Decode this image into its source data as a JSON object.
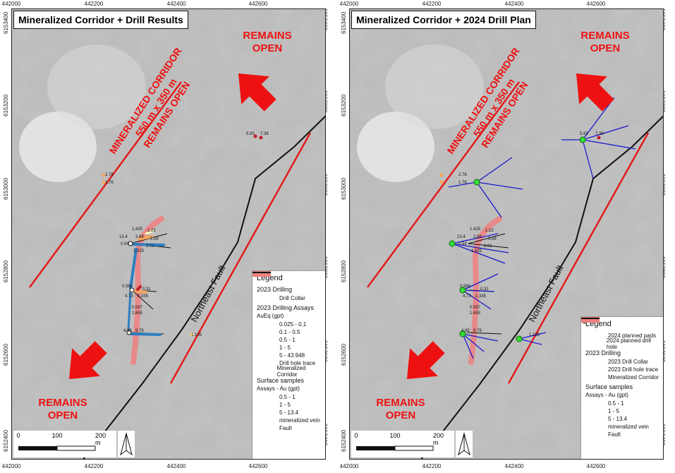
{
  "colors": {
    "red_text": "#ee1111",
    "corridor_red": "#e31b1b",
    "fault": "#111111",
    "vein": "#f08080",
    "planned_pad": "#33dd33",
    "planned_hole": "#1a1acc",
    "assay_01": "#2e7fc1",
    "assay_05": "#a8d88a",
    "assay_1": "#ffffbf",
    "assay_5": "#f4a65a",
    "assay_high": "#c51b2a"
  },
  "axes": {
    "x_ticks": [
      "442000",
      "442200",
      "442400",
      "442600"
    ],
    "y_ticks": [
      "6153400",
      "6153200",
      "6153000",
      "6152800",
      "6152600",
      "6152400"
    ]
  },
  "map_annotations": {
    "corridor_line1": "MINERALIZED CORRIDOR",
    "corridor_line2": "550 m x 350 m",
    "corridor_line3": "REMAINS OPEN",
    "remains": "REMAINS",
    "open": "OPEN",
    "fault_label": "Northeast Fault"
  },
  "sample_labels": {
    "a": "5.93",
    "b": "7.39",
    "c": "2.78",
    "d": "1.76",
    "e": "1.425",
    "f": "1.22",
    "g": "13.4",
    "h": "2.69",
    "i": "0.54",
    "j": "5.59",
    "k": "2.01",
    "l": "1.925",
    "m": "0.568",
    "n": "4.73",
    "o": "0.31",
    "p": "1.335",
    "q": "0.597",
    "r": "1.655",
    "s": "4.85",
    "t": "9.79",
    "u": "1.105"
  },
  "scalebar": {
    "l0": "0",
    "l1": "100",
    "l2": "200 m"
  },
  "left_panel": {
    "title": "Mineralized Corridor + Drill Results",
    "legend": {
      "title": "Legend",
      "section_2023": "2023 Drilling",
      "drill_collar": "Drill Collar",
      "assays_title": "2023 Drilling Assays",
      "assays_units": "AuEq (gpt)",
      "assay_bins": [
        "0.025 - 0.1",
        "0.1 - 0.5",
        "0.5 - 1",
        "1 - 5",
        "5 - 43.948"
      ],
      "drill_trace": "Drill hole trace",
      "corridor": "Mineralized Corridor",
      "surface_title": "Surface samples",
      "surface_units": "Assays - Au (gpt)",
      "surface_bins": [
        "0.5 - 1",
        "1 - 5",
        "5 - 13.4"
      ],
      "vein": "mineralized vein",
      "fault": "Fault"
    }
  },
  "right_panel": {
    "title": "Mineralized Corridor + 2024 Drill Plan",
    "legend": {
      "title": "Legend",
      "planned_pads": "2024 planned pads",
      "planned_hole": "2024 planned drill hole",
      "section_2023": "2023 Drilling",
      "drill_collar": "2023 Drill Collar",
      "drill_trace": "2023 Drill hole trace",
      "corridor": "Mineralized Corridor",
      "surface_title": "Surface samples",
      "surface_units": "Assays - Au (gpt)",
      "surface_bins": [
        "0.5 - 1",
        "1 - 5",
        "5 - 13.4"
      ],
      "vein": "mineralized vein",
      "fault": "Fault"
    }
  }
}
